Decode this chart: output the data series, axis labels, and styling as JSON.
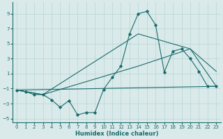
{
  "xlabel": "Humidex (Indice chaleur)",
  "background_color": "#daeaea",
  "grid_color": "#b8d4d4",
  "line_color": "#1a6b6b",
  "xlim": [
    -0.5,
    23.5
  ],
  "ylim": [
    -5.5,
    10.5
  ],
  "xticks": [
    0,
    1,
    2,
    3,
    4,
    5,
    6,
    7,
    8,
    9,
    10,
    11,
    12,
    13,
    14,
    15,
    16,
    17,
    18,
    19,
    20,
    21,
    22,
    23
  ],
  "yticks": [
    -5,
    -3,
    -1,
    1,
    3,
    5,
    7,
    9
  ],
  "line1_x": [
    0,
    1,
    2,
    3,
    4,
    5,
    6,
    7,
    8,
    9,
    10,
    11,
    12,
    13,
    14,
    15,
    16,
    17,
    18,
    19,
    20,
    21,
    22,
    23
  ],
  "line1_y": [
    -1.2,
    -1.4,
    -1.8,
    -1.8,
    -2.5,
    -3.5,
    -2.6,
    -4.5,
    -4.2,
    -4.2,
    -1.1,
    0.5,
    2.0,
    6.3,
    9.0,
    9.3,
    7.5,
    1.2,
    4.0,
    4.3,
    3.0,
    1.3,
    -0.7,
    -0.7
  ],
  "line2_x": [
    0,
    23
  ],
  "line2_y": [
    -1.2,
    -0.7
  ],
  "line3_x": [
    0,
    3,
    14,
    20,
    23
  ],
  "line3_y": [
    -1.2,
    -1.8,
    6.3,
    4.3,
    1.3
  ],
  "line4_x": [
    0,
    3,
    14,
    20,
    23
  ],
  "line4_y": [
    -1.2,
    -1.8,
    2.0,
    4.3,
    -0.7
  ],
  "xlabel_fontsize": 6.0,
  "tick_fontsize": 5.0
}
